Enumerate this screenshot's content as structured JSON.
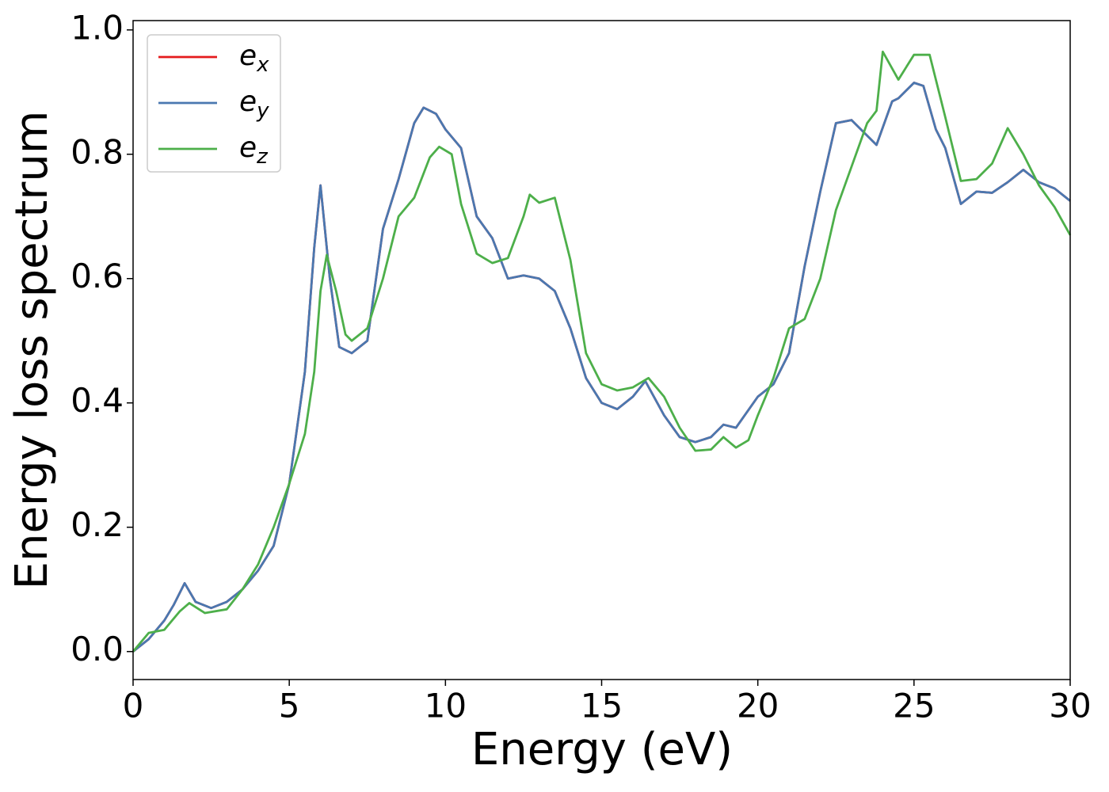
{
  "chart_data": {
    "type": "line",
    "xlabel": "Energy (eV)",
    "ylabel": "Energy loss spectrum",
    "xlim": [
      0,
      30
    ],
    "ylim": [
      -0.045,
      1.015
    ],
    "xticks": [
      0,
      5,
      10,
      15,
      20,
      25,
      30
    ],
    "yticks": [
      {
        "value": 0,
        "label": "0.0"
      },
      {
        "value": 0.2,
        "label": "0.2"
      },
      {
        "value": 0.4,
        "label": "0.4"
      },
      {
        "value": 0.6,
        "label": "0.6"
      },
      {
        "value": 0.8,
        "label": "0.8"
      },
      {
        "value": 1.0,
        "label": "1.0"
      }
    ],
    "legend": "upper left",
    "series": [
      {
        "name": "ex",
        "color": "#e41a1c",
        "x": [
          0,
          0.5,
          1,
          1.3,
          1.65,
          2,
          2.5,
          3,
          3.5,
          4,
          4.5,
          5,
          5.5,
          5.8,
          6,
          6.3,
          6.6,
          7,
          7.5,
          8,
          8.5,
          9,
          9.3,
          9.7,
          10,
          10.5,
          11,
          11.5,
          12,
          12.5,
          13,
          13.5,
          14,
          14.5,
          15,
          15.5,
          16,
          16.4,
          17,
          17.5,
          18,
          18.5,
          18.9,
          19.3,
          20,
          20.5,
          21,
          21.5,
          22,
          22.5,
          23,
          23.5,
          23.8,
          24.3,
          24.5,
          25,
          25.3,
          25.7,
          26,
          26.5,
          27,
          27.5,
          28,
          28.5,
          29,
          29.5,
          30
        ],
        "values": [
          0,
          0.02,
          0.05,
          0.075,
          0.11,
          0.08,
          0.07,
          0.08,
          0.1,
          0.13,
          0.17,
          0.27,
          0.45,
          0.65,
          0.75,
          0.6,
          0.49,
          0.48,
          0.5,
          0.68,
          0.76,
          0.85,
          0.875,
          0.865,
          0.84,
          0.81,
          0.7,
          0.665,
          0.6,
          0.605,
          0.6,
          0.58,
          0.52,
          0.44,
          0.4,
          0.39,
          0.41,
          0.435,
          0.38,
          0.345,
          0.337,
          0.345,
          0.365,
          0.36,
          0.41,
          0.43,
          0.48,
          0.62,
          0.74,
          0.85,
          0.855,
          0.83,
          0.815,
          0.885,
          0.89,
          0.915,
          0.91,
          0.84,
          0.81,
          0.72,
          0.74,
          0.738,
          0.755,
          0.775,
          0.755,
          0.745,
          0.725
        ]
      },
      {
        "name": "ey",
        "color": "#4a78b0",
        "x": [
          0,
          0.5,
          1,
          1.3,
          1.65,
          2,
          2.5,
          3,
          3.5,
          4,
          4.5,
          5,
          5.5,
          5.8,
          6,
          6.3,
          6.6,
          7,
          7.5,
          8,
          8.5,
          9,
          9.3,
          9.7,
          10,
          10.5,
          11,
          11.5,
          12,
          12.5,
          13,
          13.5,
          14,
          14.5,
          15,
          15.5,
          16,
          16.4,
          17,
          17.5,
          18,
          18.5,
          18.9,
          19.3,
          20,
          20.5,
          21,
          21.5,
          22,
          22.5,
          23,
          23.5,
          23.8,
          24.3,
          24.5,
          25,
          25.3,
          25.7,
          26,
          26.5,
          27,
          27.5,
          28,
          28.5,
          29,
          29.5,
          30
        ],
        "values": [
          0,
          0.02,
          0.05,
          0.075,
          0.11,
          0.08,
          0.07,
          0.08,
          0.1,
          0.13,
          0.17,
          0.27,
          0.45,
          0.65,
          0.75,
          0.6,
          0.49,
          0.48,
          0.5,
          0.68,
          0.76,
          0.85,
          0.875,
          0.865,
          0.84,
          0.81,
          0.7,
          0.665,
          0.6,
          0.605,
          0.6,
          0.58,
          0.52,
          0.44,
          0.4,
          0.39,
          0.41,
          0.435,
          0.38,
          0.345,
          0.337,
          0.345,
          0.365,
          0.36,
          0.41,
          0.43,
          0.48,
          0.62,
          0.74,
          0.85,
          0.855,
          0.83,
          0.815,
          0.885,
          0.89,
          0.915,
          0.91,
          0.84,
          0.81,
          0.72,
          0.74,
          0.738,
          0.755,
          0.775,
          0.755,
          0.745,
          0.725
        ]
      },
      {
        "name": "ez",
        "color": "#4daf4a",
        "x": [
          0,
          0.5,
          1,
          1.5,
          1.8,
          2.3,
          3,
          3.5,
          4,
          4.5,
          5,
          5.5,
          5.8,
          6,
          6.2,
          6.5,
          6.8,
          7,
          7.5,
          8,
          8.5,
          9,
          9.5,
          9.8,
          10.2,
          10.5,
          11,
          11.5,
          12,
          12.5,
          12.7,
          13,
          13.5,
          14,
          14.5,
          15,
          15.5,
          16,
          16.5,
          17,
          17.5,
          18,
          18.5,
          18.9,
          19.3,
          19.7,
          20,
          20.5,
          21,
          21.5,
          22,
          22.5,
          23,
          23.5,
          23.8,
          24,
          24.5,
          25,
          25.5,
          26,
          26.5,
          27,
          27.5,
          28,
          28.5,
          29,
          29.5,
          30
        ],
        "values": [
          0,
          0.03,
          0.035,
          0.065,
          0.078,
          0.062,
          0.068,
          0.1,
          0.14,
          0.2,
          0.27,
          0.35,
          0.45,
          0.58,
          0.638,
          0.58,
          0.51,
          0.5,
          0.52,
          0.6,
          0.7,
          0.73,
          0.795,
          0.812,
          0.8,
          0.72,
          0.64,
          0.625,
          0.633,
          0.7,
          0.735,
          0.722,
          0.73,
          0.63,
          0.48,
          0.43,
          0.42,
          0.425,
          0.44,
          0.41,
          0.36,
          0.323,
          0.325,
          0.345,
          0.328,
          0.34,
          0.38,
          0.44,
          0.52,
          0.535,
          0.6,
          0.71,
          0.78,
          0.85,
          0.87,
          0.965,
          0.92,
          0.96,
          0.96,
          0.86,
          0.757,
          0.76,
          0.785,
          0.842,
          0.8,
          0.75,
          0.715,
          0.67
        ]
      }
    ]
  }
}
